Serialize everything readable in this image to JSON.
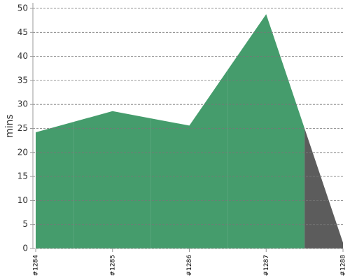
{
  "chart_data": {
    "type": "area",
    "y_label": "mins",
    "categories": [
      "#1284",
      "#1285",
      "#1286",
      "#1287",
      "#1288"
    ],
    "values": [
      24.2,
      28.6,
      25.6,
      48.8,
      1.2
    ],
    "point_colors": [
      "#459c6c",
      "#459c6c",
      "#459c6c",
      "#459c6c",
      "#5c5c5c"
    ],
    "ylim": [
      0,
      50
    ],
    "yticks": [
      0,
      5,
      10,
      15,
      20,
      25,
      30,
      35,
      40,
      45,
      50
    ],
    "grid": true
  }
}
